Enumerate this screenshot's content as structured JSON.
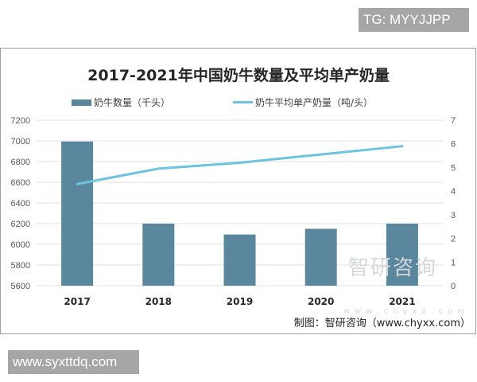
{
  "watermark_tg": "TG: MYYJJPP",
  "watermark_url": "www.syxttdq.com",
  "source": "制图：智研咨询（www.chyxx.com）",
  "logo_text": "智研咨询",
  "logo_sub": "www.chyxx.com",
  "chart_data": {
    "type": "bar+line",
    "title": "2017-2021年中国奶牛数量及平均单产奶量",
    "categories": [
      "2017",
      "2018",
      "2019",
      "2020",
      "2021"
    ],
    "series": [
      {
        "name": "奶牛数量（千头）",
        "type": "bar",
        "axis": "left",
        "color": "#5a879e",
        "values": [
          6994,
          6200,
          6095,
          6150,
          6200
        ]
      },
      {
        "name": "奶牛平均单产奶量（吨/头）",
        "type": "line",
        "axis": "right",
        "color": "#6ec3e0",
        "values": [
          4.3,
          4.95,
          5.2,
          5.55,
          5.9
        ]
      }
    ],
    "y_left": {
      "range": [
        5600,
        7200
      ],
      "ticks": [
        "5600",
        "5800",
        "6000",
        "6200",
        "6400",
        "6600",
        "6800",
        "7000",
        "7200"
      ]
    },
    "y_right": {
      "range": [
        0,
        7
      ],
      "ticks": [
        "0",
        "1",
        "2",
        "3",
        "4",
        "5",
        "6",
        "7"
      ]
    },
    "grid": true,
    "legend": "top"
  }
}
